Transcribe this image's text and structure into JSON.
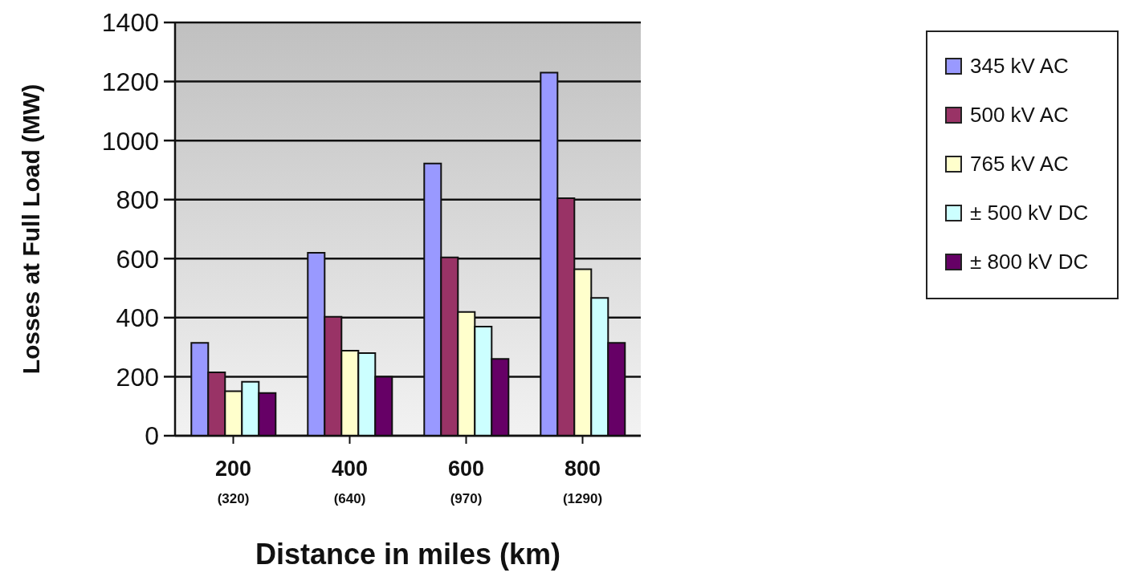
{
  "chart_data": {
    "type": "bar",
    "xlabel": "Distance in miles (km)",
    "ylabel": "Losses at Full Load (MW)",
    "categories": [
      "200\n(320)",
      "400\n(640)",
      "600\n(970)",
      "800\n(1290)"
    ],
    "series": [
      {
        "name": "345 kV AC",
        "color": "#9999ff",
        "values": [
          315,
          620,
          922,
          1230
        ]
      },
      {
        "name": "500 kV AC",
        "color": "#993366",
        "values": [
          215,
          403,
          604,
          805
        ]
      },
      {
        "name": "765 kV AC",
        "color": "#ffffcc",
        "values": [
          151,
          288,
          419,
          564
        ]
      },
      {
        "name": "± 500 kV DC",
        "color": "#ccffff",
        "values": [
          183,
          280,
          370,
          467
        ]
      },
      {
        "name": "± 800 kV DC",
        "color": "#660066",
        "values": [
          145,
          200,
          260,
          315
        ]
      }
    ],
    "ylim": [
      0,
      1400
    ],
    "yticks": [
      0,
      200,
      400,
      600,
      800,
      1000,
      1200,
      1400
    ],
    "grid": "y",
    "legend": "right"
  }
}
